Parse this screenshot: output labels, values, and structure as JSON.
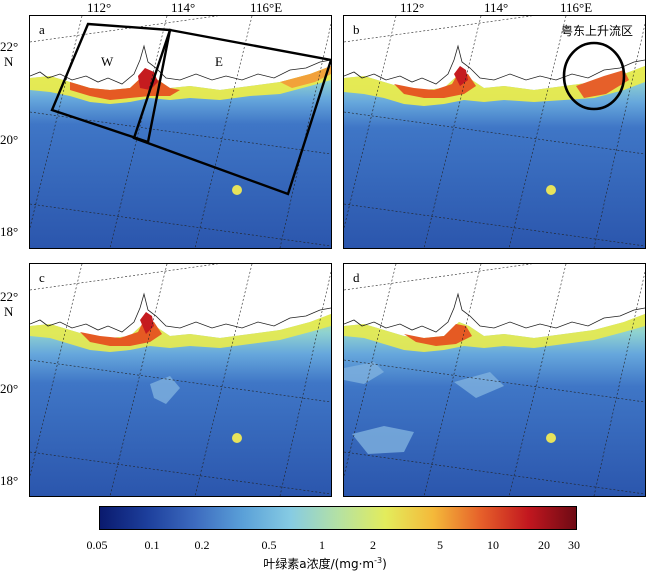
{
  "longitude_labels": [
    "112°",
    "114°",
    "116°E"
  ],
  "latitude_labels": {
    "lat22": "22°",
    "north": "N",
    "lat20": "20°",
    "lat18": "18°"
  },
  "panels": [
    {
      "id": "a",
      "regions": [
        "W",
        "E"
      ]
    },
    {
      "id": "b",
      "annotation": "粤东上升流区"
    },
    {
      "id": "c"
    },
    {
      "id": "d"
    }
  ],
  "colorbar": {
    "ticks": [
      "0.05",
      "0.1",
      "0.2",
      "0.5",
      "1",
      "2",
      "5",
      "10",
      "20",
      "30"
    ],
    "title": "叶绿素a浓度/(mg·m",
    "title_exp": "-3",
    "title_end": ")",
    "colors": [
      "#0a1a6e",
      "#1d3f9c",
      "#3d6bbf",
      "#5aa0d8",
      "#86cbe3",
      "#b4e1a4",
      "#e3ec5c",
      "#f4b93a",
      "#e6602a",
      "#c2171f",
      "#6e0a14"
    ]
  }
}
